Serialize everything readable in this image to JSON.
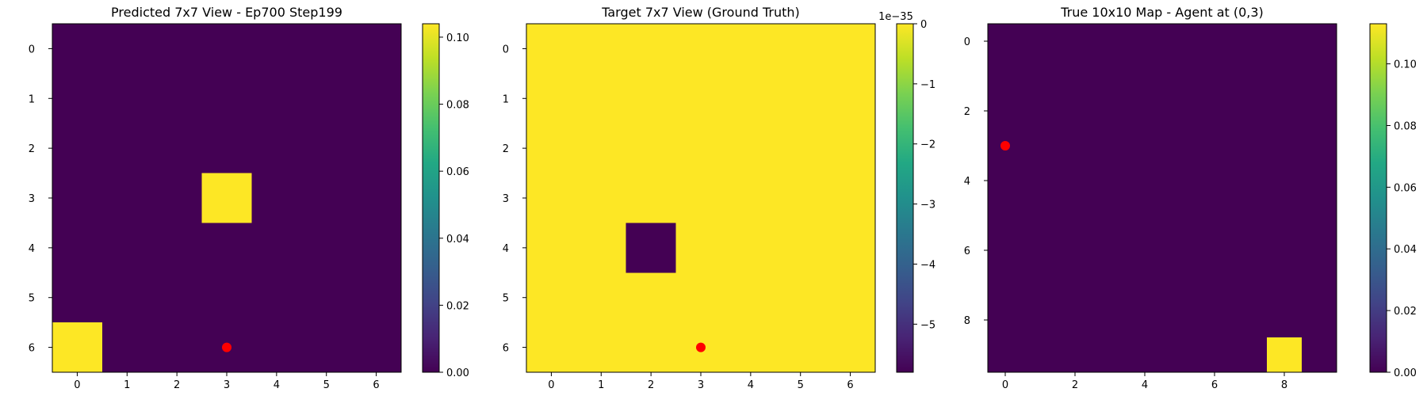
{
  "colors": {
    "viridis_low": "#440154",
    "viridis_high": "#fde725",
    "marker": "#ff0000"
  },
  "chart_data": [
    {
      "type": "heatmap",
      "title": "Predicted 7x7 View - Ep700 Step199",
      "rows": 7,
      "cols": 7,
      "x_ticks": [
        0,
        1,
        2,
        3,
        4,
        5,
        6
      ],
      "y_ticks": [
        0,
        1,
        2,
        3,
        4,
        5,
        6
      ],
      "values": [
        [
          0,
          0,
          0,
          0,
          0,
          0,
          0
        ],
        [
          0,
          0,
          0,
          0,
          0,
          0,
          0
        ],
        [
          0,
          0,
          0,
          0,
          0,
          0,
          0
        ],
        [
          0,
          0,
          0,
          0.104,
          0,
          0,
          0
        ],
        [
          0,
          0,
          0,
          0,
          0,
          0,
          0
        ],
        [
          0,
          0,
          0,
          0,
          0,
          0,
          0
        ],
        [
          0.104,
          0,
          0,
          0,
          0,
          0,
          0
        ]
      ],
      "colorbar": {
        "min": 0,
        "max": 0.104,
        "ticks": [
          "0.00",
          "0.02",
          "0.04",
          "0.06",
          "0.08",
          "0.10"
        ],
        "tick_values": [
          0,
          0.02,
          0.04,
          0.06,
          0.08,
          0.1
        ],
        "offset": ""
      },
      "marker": {
        "x": 3,
        "y": 6,
        "color": "red"
      }
    },
    {
      "type": "heatmap",
      "title": "Target 7x7 View (Ground Truth)",
      "rows": 7,
      "cols": 7,
      "x_ticks": [
        0,
        1,
        2,
        3,
        4,
        5,
        6
      ],
      "y_ticks": [
        0,
        1,
        2,
        3,
        4,
        5,
        6
      ],
      "values": [
        [
          0,
          0,
          0,
          0,
          0,
          0,
          0
        ],
        [
          0,
          0,
          0,
          0,
          0,
          0,
          0
        ],
        [
          0,
          0,
          0,
          0,
          0,
          0,
          0
        ],
        [
          0,
          0,
          0,
          0,
          0,
          0,
          0
        ],
        [
          0,
          0,
          -5.8,
          0,
          0,
          0,
          0
        ],
        [
          0,
          0,
          0,
          0,
          0,
          0,
          0
        ],
        [
          0,
          0,
          0,
          0,
          0,
          0,
          0
        ]
      ],
      "colorbar": {
        "min": -5.8,
        "max": 0,
        "ticks": [
          "0",
          "−1",
          "−2",
          "−3",
          "−4",
          "−5"
        ],
        "tick_values": [
          0,
          -1,
          -2,
          -3,
          -4,
          -5
        ],
        "offset": "1e−35"
      },
      "marker": {
        "x": 3,
        "y": 6,
        "color": "red"
      }
    },
    {
      "type": "heatmap",
      "title": "True 10x10 Map - Agent at (0,3)",
      "rows": 10,
      "cols": 10,
      "x_ticks": [
        0,
        2,
        4,
        6,
        8
      ],
      "y_ticks": [
        0,
        2,
        4,
        6,
        8
      ],
      "values": [
        [
          0,
          0,
          0,
          0,
          0,
          0,
          0,
          0,
          0,
          0
        ],
        [
          0,
          0,
          0,
          0,
          0,
          0,
          0,
          0,
          0,
          0
        ],
        [
          0,
          0,
          0,
          0,
          0,
          0,
          0,
          0,
          0,
          0
        ],
        [
          0,
          0,
          0,
          0,
          0,
          0,
          0,
          0,
          0,
          0
        ],
        [
          0,
          0,
          0,
          0,
          0,
          0,
          0,
          0,
          0,
          0
        ],
        [
          0,
          0,
          0,
          0,
          0,
          0,
          0,
          0,
          0,
          0
        ],
        [
          0,
          0,
          0,
          0,
          0,
          0,
          0,
          0,
          0,
          0
        ],
        [
          0,
          0,
          0,
          0,
          0,
          0,
          0,
          0,
          0,
          0
        ],
        [
          0,
          0,
          0,
          0,
          0,
          0,
          0,
          0,
          0,
          0
        ],
        [
          0,
          0,
          0,
          0,
          0,
          0,
          0,
          0,
          0.113,
          0
        ]
      ],
      "colorbar": {
        "min": 0,
        "max": 0.113,
        "ticks": [
          "0.00",
          "0.02",
          "0.04",
          "0.06",
          "0.08",
          "0.10"
        ],
        "tick_values": [
          0,
          0.02,
          0.04,
          0.06,
          0.08,
          0.1
        ],
        "offset": ""
      },
      "marker": {
        "x": 0,
        "y": 3,
        "color": "red"
      }
    }
  ]
}
